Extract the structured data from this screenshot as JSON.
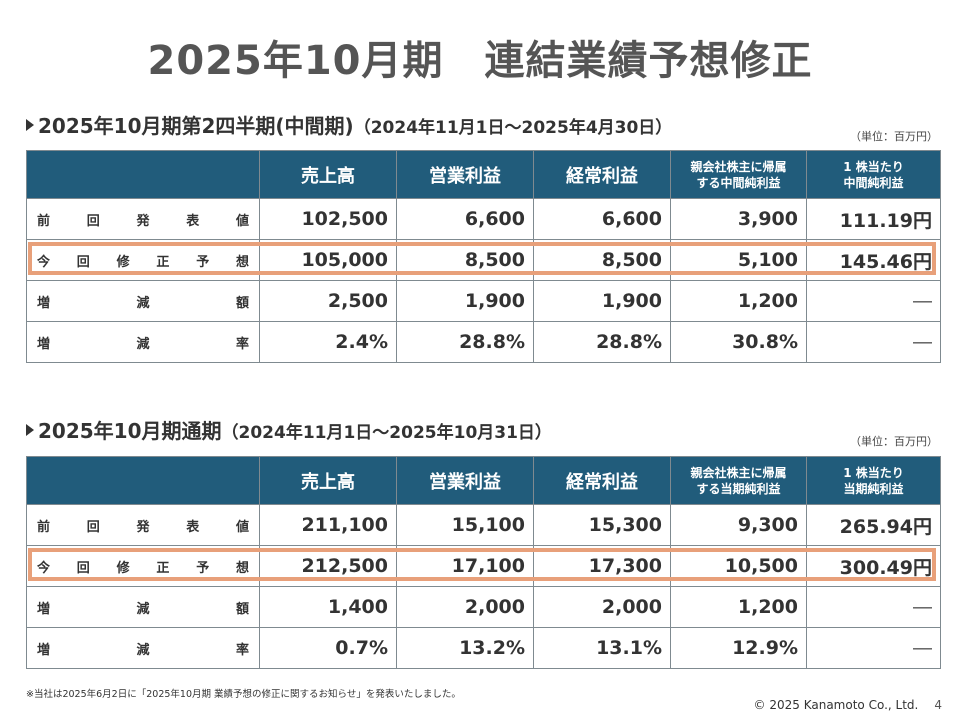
{
  "title": "2025年10月期　連結業績予想修正",
  "unit_label": "（単位：百万円）",
  "sections": [
    {
      "heading": "2025年10月期第2四半期(中間期)",
      "period": "（2024年11月1日～2025年4月30日）",
      "columns": [
        "売上高",
        "営業利益",
        "経常利益",
        "親会社株主に帰属\nする中間純利益",
        "1 株当たり\n中間純利益"
      ],
      "rows": [
        {
          "label": [
            "前",
            "回",
            "発",
            "表",
            "値"
          ],
          "values": [
            "102,500",
            "6,600",
            "6,600",
            "3,900",
            "111.19円"
          ]
        },
        {
          "label": [
            "今",
            "回",
            "修",
            "正",
            "予",
            "想"
          ],
          "values": [
            "105,000",
            "8,500",
            "8,500",
            "5,100",
            "145.46円"
          ]
        },
        {
          "label": [
            "増",
            "減",
            "額"
          ],
          "values": [
            "2,500",
            "1,900",
            "1,900",
            "1,200",
            "―"
          ]
        },
        {
          "label": [
            "増",
            "減",
            "率"
          ],
          "values": [
            "2.4%",
            "28.8%",
            "28.8%",
            "30.8%",
            "―"
          ]
        }
      ]
    },
    {
      "heading": "2025年10月期通期",
      "period": "（2024年11月1日～2025年10月31日）",
      "columns": [
        "売上高",
        "営業利益",
        "経常利益",
        "親会社株主に帰属\nする当期純利益",
        "1 株当たり\n当期純利益"
      ],
      "rows": [
        {
          "label": [
            "前",
            "回",
            "発",
            "表",
            "値"
          ],
          "values": [
            "211,100",
            "15,100",
            "15,300",
            "9,300",
            "265.94円"
          ]
        },
        {
          "label": [
            "今",
            "回",
            "修",
            "正",
            "予",
            "想"
          ],
          "values": [
            "212,500",
            "17,100",
            "17,300",
            "10,500",
            "300.49円"
          ]
        },
        {
          "label": [
            "増",
            "減",
            "額"
          ],
          "values": [
            "1,400",
            "2,000",
            "2,000",
            "1,200",
            "―"
          ]
        },
        {
          "label": [
            "増",
            "減",
            "率"
          ],
          "values": [
            "0.7%",
            "13.2%",
            "13.1%",
            "12.9%",
            "―"
          ]
        }
      ]
    }
  ],
  "footnote": "※当社は2025年6月2日に「2025年10月期 業績予想の修正に関するお知らせ」を発表いたしました。",
  "copyright": "© 2025 Kanamoto Co., Ltd.",
  "page_number": "4",
  "colors": {
    "header_bg": "#215c7b",
    "highlight_border": "#e8a07a"
  }
}
